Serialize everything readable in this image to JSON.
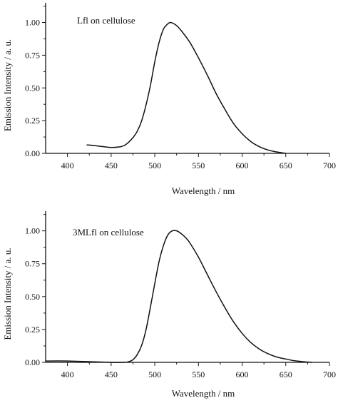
{
  "chart_data": [
    {
      "type": "line",
      "title": "",
      "annotation": "Lfl on cellulose",
      "xlabel": "Wavelength / nm",
      "ylabel": "Emission Intensity / a. u.",
      "xlim": [
        375,
        700
      ],
      "ylim": [
        0,
        1.15
      ],
      "xticks": [
        400,
        450,
        500,
        550,
        600,
        650,
        700
      ],
      "xtick_labels": [
        "400",
        "450",
        "500",
        "550",
        "600",
        "650",
        "700"
      ],
      "yticks": [
        0,
        0.25,
        0.5,
        0.75,
        1.0
      ],
      "ytick_labels": [
        "0.00",
        "0.25",
        "0.50",
        "0.75",
        "1.00"
      ],
      "grid": false,
      "series": [
        {
          "x": [
            422,
            430,
            440,
            450,
            460,
            465,
            470,
            475,
            480,
            485,
            490,
            495,
            500,
            505,
            510,
            515,
            518,
            522,
            526,
            530,
            540,
            550,
            560,
            570,
            580,
            590,
            600,
            610,
            620,
            630,
            640,
            650
          ],
          "y": [
            0.065,
            0.06,
            0.052,
            0.045,
            0.05,
            0.06,
            0.085,
            0.12,
            0.17,
            0.25,
            0.37,
            0.52,
            0.7,
            0.85,
            0.95,
            0.99,
            1.0,
            0.99,
            0.97,
            0.94,
            0.85,
            0.73,
            0.6,
            0.46,
            0.34,
            0.23,
            0.15,
            0.09,
            0.05,
            0.025,
            0.01,
            0.0
          ]
        }
      ]
    },
    {
      "type": "line",
      "title": "",
      "annotation": "3MLfl on cellulose",
      "xlabel": "Wavelength / nm",
      "ylabel": "Emission Intensity / a. u.",
      "xlim": [
        375,
        700
      ],
      "ylim": [
        0,
        1.15
      ],
      "xticks": [
        400,
        450,
        500,
        550,
        600,
        650,
        700
      ],
      "xtick_labels": [
        "400",
        "450",
        "500",
        "550",
        "600",
        "650",
        "700"
      ],
      "yticks": [
        0,
        0.25,
        0.5,
        0.75,
        1.0
      ],
      "ytick_labels": [
        "0.00",
        "0.25",
        "0.50",
        "0.75",
        "1.00"
      ],
      "grid": false,
      "series": [
        {
          "x": [
            375,
            400,
            450,
            465,
            470,
            475,
            480,
            485,
            490,
            495,
            500,
            505,
            510,
            515,
            520,
            525,
            530,
            535,
            540,
            550,
            560,
            570,
            580,
            590,
            600,
            610,
            620,
            630,
            640,
            650,
            660,
            670,
            680
          ],
          "y": [
            0.01,
            0.01,
            0.0,
            0.0,
            0.005,
            0.02,
            0.06,
            0.13,
            0.25,
            0.42,
            0.6,
            0.77,
            0.89,
            0.97,
            1.0,
            1.0,
            0.98,
            0.95,
            0.91,
            0.8,
            0.67,
            0.54,
            0.42,
            0.31,
            0.22,
            0.15,
            0.1,
            0.065,
            0.04,
            0.025,
            0.012,
            0.005,
            0.0
          ]
        }
      ]
    }
  ]
}
